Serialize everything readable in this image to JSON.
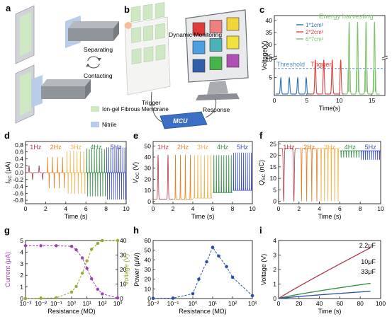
{
  "panel_letters": [
    "a",
    "b",
    "c",
    "d",
    "e",
    "f",
    "g",
    "h",
    "i"
  ],
  "colors": {
    "freq": [
      "#b03a48",
      "#e67e22",
      "#f0b24a",
      "#2e8b3e",
      "#3b4cc0"
    ],
    "device_green": "#cfe8c4",
    "device_blue": "#b9cde8",
    "grey_plate": "#9aa0a6",
    "purple": "#9b3fb5",
    "olive": "#9aa832",
    "navy": "#2c4ea8",
    "threshold": "#5b8fc9"
  },
  "panel_a": {
    "separating": "Separating",
    "contacting": "Contacting",
    "legend": [
      {
        "label": "Ion-gel Fibrous Membrane",
        "color": "#cfe8c4"
      },
      {
        "label": "Nitrile",
        "color": "#b9cde8"
      }
    ]
  },
  "panel_b": {
    "dynamic_monitoring": "Dynamic Monitoring",
    "trigger": "Trigger",
    "response": "Response",
    "mcu": "MCU",
    "screen_colors": [
      "#e03b3b",
      "#f08080",
      "#f2d43b",
      "#4aa0e0",
      "#4bb3b8",
      "#f2e23b",
      "#2f5fa8",
      "#45b54a",
      "#b04fb5"
    ]
  },
  "chart_data": [
    {
      "id": "c",
      "type": "line",
      "xlabel": "Time(s)",
      "ylabel": "Voltage(V)",
      "xlim": [
        0,
        17
      ],
      "xticks": [
        0,
        5,
        10,
        15
      ],
      "yticks": [
        5,
        10,
        25,
        30,
        35,
        40
      ],
      "axis_break": [
        10,
        25
      ],
      "threshold_label": "Threshold",
      "threshold_value": 7.5,
      "trigger_label": "Trigger",
      "energy_label": "Energy harvesting",
      "series": [
        {
          "name": "1*1cm²",
          "color": "#2c6fb7",
          "peak_times": [
            1.0,
            2.3,
            3.6,
            4.9
          ],
          "peak": 4.5
        },
        {
          "name": "2*2cm²",
          "color": "#e0403a",
          "peak_times": [
            6.3,
            7.6,
            8.9,
            10.2
          ],
          "peak": 9.5
        },
        {
          "name": "6*7cm²",
          "color": "#7cc26a",
          "peak_times": [
            11.5,
            12.8,
            14.1,
            15.4
          ],
          "peak": 39
        }
      ]
    },
    {
      "id": "d",
      "type": "line",
      "xlabel": "Time (s)",
      "ylabel": "I",
      "ylabel_sub": "SC",
      "ylabel_unit": " (μA)",
      "xlim": [
        0,
        10
      ],
      "ylim": [
        -0.9,
        0.9
      ],
      "xticks": [
        0,
        2,
        4,
        6,
        8,
        10
      ],
      "yticks": [
        -0.8,
        -0.6,
        -0.4,
        -0.2,
        0.0,
        0.2,
        0.4,
        0.6,
        0.8
      ],
      "ytick_labels": [
        "-0.8",
        "-0.6",
        "-0.4",
        "-0.2",
        "0.0",
        "0.2",
        "0.4",
        "0.6",
        "0.8"
      ],
      "series": [
        {
          "name": "1Hz",
          "range": [
            0,
            2
          ],
          "f": 1,
          "amp": 0.2
        },
        {
          "name": "2Hz",
          "range": [
            2,
            4
          ],
          "f": 2,
          "amp": 0.45
        },
        {
          "name": "3Hz",
          "range": [
            4,
            6
          ],
          "f": 3,
          "amp": 0.62
        },
        {
          "name": "4Hz",
          "range": [
            6,
            8
          ],
          "f": 4,
          "amp": 0.7
        },
        {
          "name": "5Hz",
          "range": [
            8,
            10
          ],
          "f": 5,
          "amp": 0.78
        }
      ]
    },
    {
      "id": "e",
      "type": "line",
      "xlabel": "Time (s)",
      "ylabel": "V",
      "ylabel_sub": "OC",
      "ylabel_unit": " (V)",
      "xlim": [
        0,
        10
      ],
      "ylim": [
        -2,
        54
      ],
      "xticks": [
        0,
        2,
        4,
        6,
        8,
        10
      ],
      "yticks": [
        0,
        10,
        20,
        30,
        40,
        50
      ],
      "ytick_labels": [
        "0",
        "10",
        "20",
        "30",
        "40",
        "50"
      ],
      "baseline": 0,
      "series": [
        {
          "name": "1Hz",
          "range": [
            0,
            2
          ],
          "f": 1,
          "peak": 42,
          "base": 2
        },
        {
          "name": "2Hz",
          "range": [
            2,
            4
          ],
          "f": 2,
          "peak": 42,
          "base": 2
        },
        {
          "name": "3Hz",
          "range": [
            4,
            6
          ],
          "f": 3,
          "peak": 42,
          "base": 3
        },
        {
          "name": "4Hz",
          "range": [
            6,
            8
          ],
          "f": 4,
          "peak": 42,
          "base": 8
        },
        {
          "name": "5Hz",
          "range": [
            8,
            10
          ],
          "f": 5,
          "peak": 44,
          "base": 10
        }
      ]
    },
    {
      "id": "f",
      "type": "line",
      "xlabel": "Time (s)",
      "ylabel": "Q",
      "ylabel_sub": "SC",
      "ylabel_unit": " (nC)",
      "xlim": [
        0,
        10
      ],
      "ylim": [
        -1,
        26
      ],
      "xticks": [
        0,
        2,
        4,
        6,
        8,
        10
      ],
      "yticks": [
        0,
        5,
        10,
        15,
        20,
        25
      ],
      "ytick_labels": [
        "0",
        "5",
        "10",
        "15",
        "20",
        "25"
      ],
      "series": [
        {
          "name": "1Hz",
          "range": [
            0,
            2
          ],
          "f": 1,
          "top": 23,
          "bottom": 0
        },
        {
          "name": "2Hz",
          "range": [
            2,
            4
          ],
          "f": 2,
          "top": 23,
          "bottom": 0
        },
        {
          "name": "3Hz",
          "range": [
            4,
            6
          ],
          "f": 3,
          "top": 23,
          "bottom": 0
        },
        {
          "name": "4Hz",
          "range": [
            6,
            8
          ],
          "f": 4,
          "top": 22,
          "bottom": 19
        },
        {
          "name": "5Hz",
          "range": [
            8,
            10
          ],
          "f": 5,
          "top": 22,
          "bottom": 18
        }
      ]
    },
    {
      "id": "g",
      "type": "scatter",
      "xlabel": "Resistance (MΩ)",
      "ylabel_left": "Current (μA)",
      "ylabel_right": "Voltage (V)",
      "xscale": "log",
      "xlim_exp": [
        -3,
        3
      ],
      "xticks": [
        "10⁻³",
        "10⁻²",
        "10⁻¹",
        "10⁰",
        "10¹",
        "10²",
        "10³"
      ],
      "ylim_left": [
        0,
        5
      ],
      "yticks_left": [
        "0",
        "1",
        "2",
        "3",
        "4",
        "5"
      ],
      "ylim_right": [
        0,
        40
      ],
      "yticks_right": [
        "0",
        "10",
        "20",
        "30",
        "40"
      ],
      "x": [
        0.001,
        0.01,
        0.1,
        1,
        2,
        5,
        10,
        20,
        50,
        100,
        1000
      ],
      "current": [
        4.55,
        4.55,
        4.55,
        4.5,
        4.2,
        3.5,
        2.6,
        1.7,
        0.8,
        0.4,
        0.05
      ],
      "voltage": [
        0.02,
        0.2,
        0.5,
        4.5,
        8.4,
        17.5,
        26,
        34,
        38,
        40,
        40
      ]
    },
    {
      "id": "h",
      "type": "scatter",
      "xlabel": "Resistance (MΩ)",
      "ylabel": "Power (μW)",
      "xscale": "log",
      "xlim_exp": [
        -2,
        3
      ],
      "xticks": [
        "10⁻²",
        "10⁻¹",
        "10⁰",
        "10¹",
        "10²",
        "10³"
      ],
      "ylim": [
        0,
        60
      ],
      "yticks": [
        "0",
        "10",
        "20",
        "30",
        "40",
        "50",
        "60"
      ],
      "x": [
        0.01,
        0.1,
        1,
        2,
        5,
        10,
        20,
        50,
        100,
        1000
      ],
      "y": [
        0.2,
        0.4,
        5,
        20,
        38,
        53,
        44,
        33,
        22,
        3
      ]
    },
    {
      "id": "i",
      "type": "line",
      "xlabel": "Time (s)",
      "ylabel": "Voltage (V)",
      "xlim": [
        0,
        100
      ],
      "ylim": [
        0,
        4
      ],
      "xticks": [
        0,
        20,
        40,
        60,
        80,
        100
      ],
      "yticks": [
        0,
        1,
        2,
        3,
        4
      ],
      "series": [
        {
          "name": "2.2μF",
          "color": "#b03a48",
          "end_value": 3.5,
          "shape": 0.6
        },
        {
          "name": "10μF",
          "color": "#2e8b3e",
          "end_value": 1.05,
          "shape": 0.5
        },
        {
          "name": "33μF",
          "color": "#2c4ea8",
          "end_value": 0.5,
          "shape": 0.5
        }
      ]
    }
  ]
}
